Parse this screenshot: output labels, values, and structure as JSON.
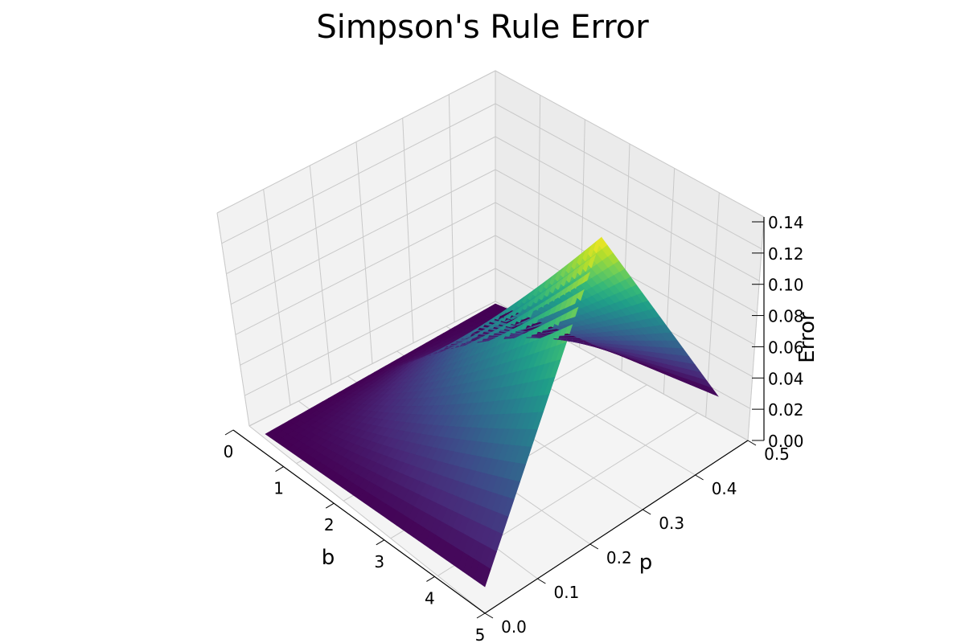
{
  "chart_data": {
    "type": "surface",
    "title": "Simpson's Rule Error",
    "xlabel": "b",
    "ylabel": "p",
    "zlabel": "Error",
    "x_ticks": [
      "0",
      "1",
      "2",
      "3",
      "4",
      "5"
    ],
    "y_ticks": [
      "0.0",
      "0.1",
      "0.2",
      "0.3",
      "0.4",
      "0.5"
    ],
    "z_ticks": [
      "0.00",
      "0.02",
      "0.04",
      "0.06",
      "0.08",
      "0.10",
      "0.12",
      "0.14"
    ],
    "xlim": [
      0,
      5
    ],
    "ylim": [
      0,
      0.5
    ],
    "zlim": [
      0,
      0.14
    ],
    "grid": true,
    "colormap": "viridis",
    "surface_corners": [
      {
        "b": 0,
        "p": 0,
        "error": 0.0
      },
      {
        "b": 5,
        "p": 0,
        "error": 0.0
      },
      {
        "b": 0,
        "p": 0.5,
        "error": 0.0
      },
      {
        "b": 5,
        "p": 0.5,
        "error": 0.0
      }
    ],
    "peak": {
      "b": 5,
      "p": 0.25,
      "error": 0.11
    }
  }
}
